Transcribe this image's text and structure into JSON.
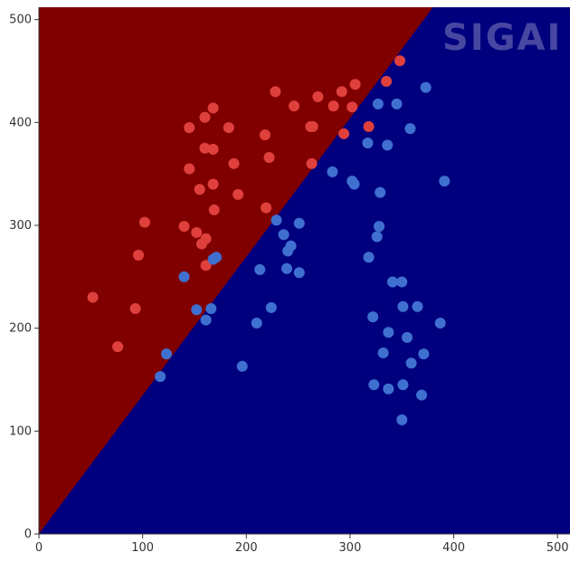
{
  "watermark": "SIGAI",
  "chart_data": {
    "type": "scatter",
    "title": "",
    "xlabel": "",
    "ylabel": "",
    "xlim": [
      0,
      512
    ],
    "ylim": [
      0,
      512
    ],
    "x_ticks": [
      0,
      100,
      200,
      300,
      400,
      500
    ],
    "y_ticks": [
      0,
      100,
      200,
      300,
      400,
      500
    ],
    "grid": false,
    "legend": "none",
    "decision_boundary": {
      "line_points": [
        [
          0,
          0
        ],
        [
          380,
          512
        ]
      ],
      "region_above_color": "#800000",
      "region_below_color": "#00007f"
    },
    "series": [
      {
        "color": "#e0403c",
        "points": [
          [
            52,
            230
          ],
          [
            76,
            182
          ],
          [
            93,
            219
          ],
          [
            96,
            271
          ],
          [
            102,
            303
          ],
          [
            140,
            299
          ],
          [
            145,
            395
          ],
          [
            145,
            355
          ],
          [
            152,
            293
          ],
          [
            155,
            335
          ],
          [
            157,
            282
          ],
          [
            160,
            405
          ],
          [
            160,
            375
          ],
          [
            161,
            261
          ],
          [
            161,
            287
          ],
          [
            168,
            414
          ],
          [
            168,
            374
          ],
          [
            168,
            340
          ],
          [
            169,
            315
          ],
          [
            183,
            395
          ],
          [
            188,
            360
          ],
          [
            192,
            330
          ],
          [
            218,
            388
          ],
          [
            219,
            317
          ],
          [
            222,
            366
          ],
          [
            228,
            430
          ],
          [
            246,
            416
          ],
          [
            262,
            396
          ],
          [
            263,
            360
          ],
          [
            264,
            396
          ],
          [
            269,
            425
          ],
          [
            284,
            416
          ],
          [
            292,
            430
          ],
          [
            294,
            389
          ],
          [
            302,
            415
          ],
          [
            305,
            437
          ],
          [
            318,
            396
          ],
          [
            335,
            440
          ],
          [
            348,
            460
          ]
        ]
      },
      {
        "color": "#3f70d0",
        "points": [
          [
            117,
            153
          ],
          [
            123,
            175
          ],
          [
            140,
            250
          ],
          [
            152,
            218
          ],
          [
            161,
            208
          ],
          [
            166,
            219
          ],
          [
            168,
            267
          ],
          [
            171,
            269
          ],
          [
            196,
            163
          ],
          [
            210,
            205
          ],
          [
            213,
            257
          ],
          [
            224,
            220
          ],
          [
            229,
            305
          ],
          [
            236,
            291
          ],
          [
            239,
            258
          ],
          [
            240,
            275
          ],
          [
            243,
            280
          ],
          [
            251,
            254
          ],
          [
            251,
            302
          ],
          [
            283,
            352
          ],
          [
            302,
            343
          ],
          [
            304,
            340
          ],
          [
            317,
            380
          ],
          [
            318,
            269
          ],
          [
            322,
            211
          ],
          [
            323,
            145
          ],
          [
            326,
            289
          ],
          [
            327,
            418
          ],
          [
            328,
            299
          ],
          [
            329,
            332
          ],
          [
            332,
            176
          ],
          [
            336,
            378
          ],
          [
            337,
            196
          ],
          [
            337,
            141
          ],
          [
            341,
            245
          ],
          [
            345,
            418
          ],
          [
            350,
            111
          ],
          [
            350,
            245
          ],
          [
            351,
            221
          ],
          [
            351,
            145
          ],
          [
            355,
            191
          ],
          [
            358,
            394
          ],
          [
            359,
            166
          ],
          [
            365,
            221
          ],
          [
            369,
            135
          ],
          [
            371,
            175
          ],
          [
            373,
            434
          ],
          [
            387,
            205
          ],
          [
            391,
            343
          ]
        ]
      }
    ]
  }
}
